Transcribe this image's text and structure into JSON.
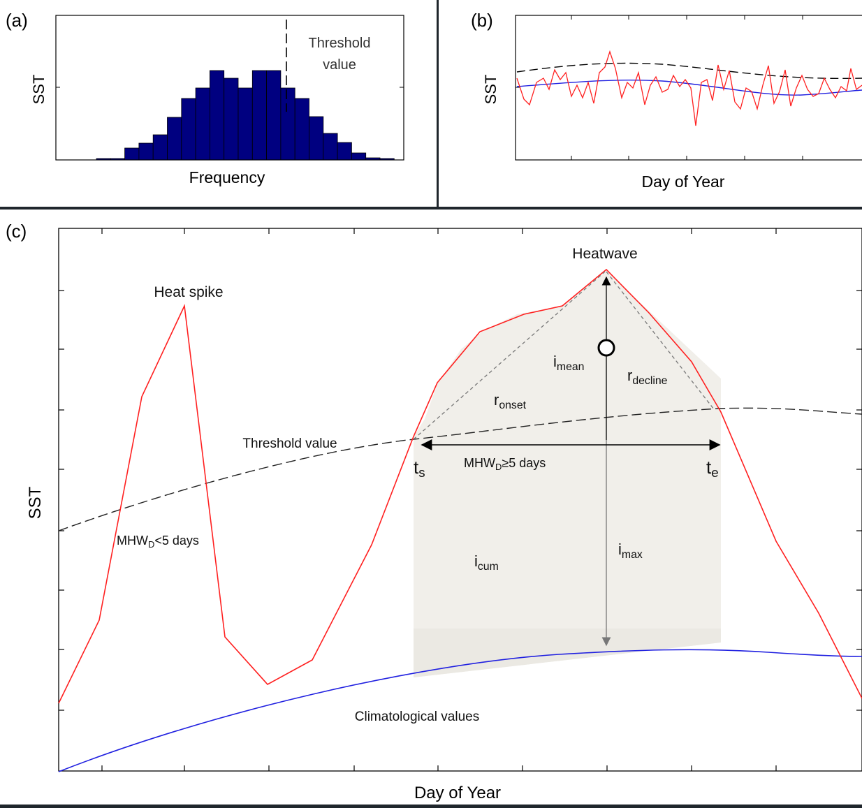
{
  "panel_a": {
    "label": "(a)",
    "y_label": "SST",
    "x_label": "Frequency",
    "threshold_line1": "Threshold",
    "threshold_line2": "value"
  },
  "panel_b": {
    "label": "(b)",
    "y_label": "SST",
    "x_label": "Day of Year"
  },
  "panel_c": {
    "label": "(c)",
    "y_label": "SST",
    "x_label": "Day of Year",
    "heat_spike": "Heat spike",
    "heatwave": "Heatwave",
    "threshold": "Threshold value",
    "climatology": "Climatological values",
    "mhw_short_a": "MHW",
    "mhw_short_sub": "D",
    "mhw_short_b": "<5 days",
    "mhw_long_a": "MHW",
    "mhw_long_sub": "D",
    "mhw_long_b": "≥5 days",
    "ts_main": "t",
    "ts_sub": "s",
    "te_main": "t",
    "te_sub": "e",
    "imean_main": "i",
    "imean_sub": "mean",
    "imax_main": "i",
    "imax_sub": "max",
    "icum_main": "i",
    "icum_sub": "cum",
    "ronset_main": "r",
    "ronset_sub": "onset",
    "rdecline_main": "r",
    "rdecline_sub": "decline"
  },
  "colors": {
    "histogram_bar": "#000080",
    "sst_series": "#ff2020",
    "climatology": "#2020e0",
    "threshold": "#000000",
    "shading": "#f1efea"
  }
}
